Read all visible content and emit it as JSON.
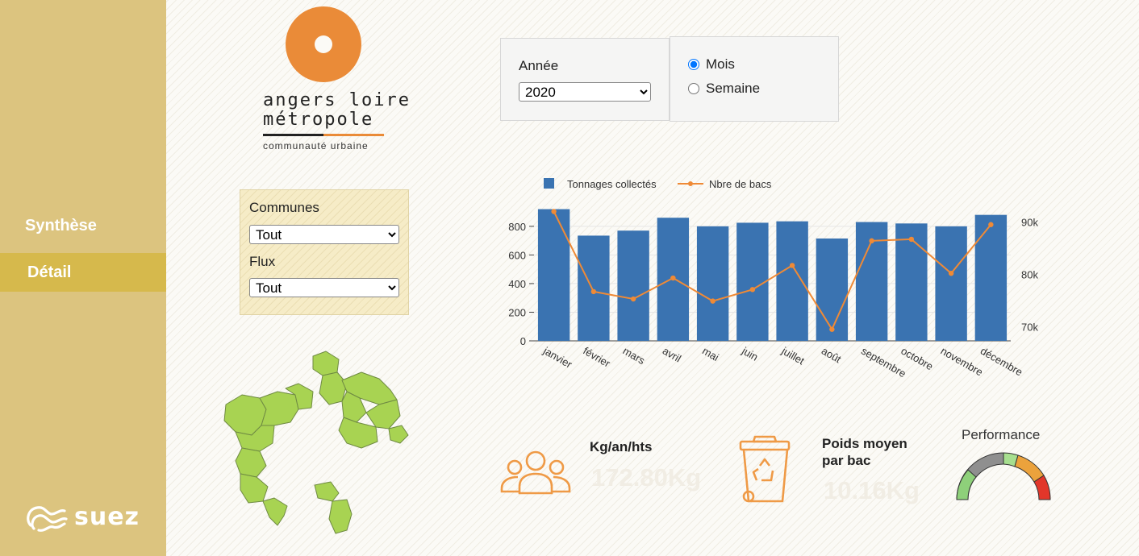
{
  "sidebar": {
    "items": [
      {
        "label": "Synthèse"
      },
      {
        "label": "Détail"
      }
    ],
    "brand": "suez"
  },
  "logo": {
    "line1": "angers loire",
    "line2": "métropole",
    "line3": "communauté urbaine",
    "color": "#ea8b38"
  },
  "filters": {
    "communes": {
      "label": "Communes",
      "value": "Tout"
    },
    "flux": {
      "label": "Flux",
      "value": "Tout"
    }
  },
  "year": {
    "label": "Année",
    "value": "2020"
  },
  "period": {
    "options": [
      {
        "label": "Mois",
        "checked": true
      },
      {
        "label": "Semaine",
        "checked": false
      }
    ]
  },
  "chart_data": {
    "type": "bar",
    "categories": [
      "janvier",
      "février",
      "mars",
      "avril",
      "mai",
      "juin",
      "juillet",
      "août",
      "septembre",
      "octobre",
      "novembre",
      "décembre"
    ],
    "series": [
      {
        "name": "Tonnages collectés",
        "type": "bar",
        "axis": "left",
        "color": "#3a73b1",
        "values": [
          920,
          735,
          770,
          860,
          800,
          825,
          835,
          715,
          830,
          820,
          800,
          880
        ]
      },
      {
        "name": "Nbre de bacs",
        "type": "line",
        "axis": "right",
        "color": "#ef8a36",
        "values": [
          92000,
          76700,
          75300,
          79300,
          74900,
          77100,
          81700,
          69500,
          86400,
          86700,
          80200,
          89500
        ]
      }
    ],
    "yticks_left": [
      0,
      200,
      400,
      600,
      800
    ],
    "yticks_right_labels": [
      "70k",
      "80k",
      "90k"
    ],
    "yticks_right_values": [
      70000,
      80000,
      90000
    ],
    "ylim_left": [
      0,
      940
    ],
    "ylim_right": [
      67300,
      93000
    ],
    "legend": "top-left"
  },
  "kpis": {
    "kg": {
      "title": "Kg/an/hts",
      "value": "172.80Kg",
      "icon": "people-icon"
    },
    "poids": {
      "title_line1": "Poids moyen",
      "title_line2": "par bac",
      "value": "10.16Kg",
      "icon": "recycle-bin-icon"
    },
    "performance": {
      "title": "Performance",
      "icon": "gauge-icon"
    }
  }
}
